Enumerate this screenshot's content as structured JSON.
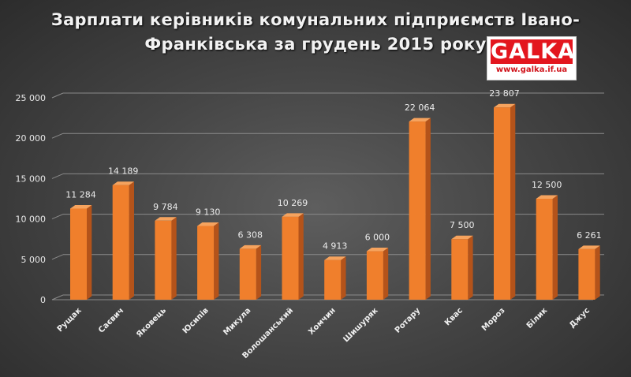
{
  "logo": {
    "brand": "GALKA",
    "url": "www.galka.if.ua"
  },
  "colors": {
    "bar_front": "#f07f2c",
    "bar_side": "#b4531a",
    "bar_top": "#f6a35e",
    "grid": "#8a8a8a"
  },
  "chart_data": {
    "type": "bar",
    "title_lines": [
      "Зарплати керівників комунальних підприємств Івано-",
      "Франківська за грудень 2015 року"
    ],
    "categories": [
      "Рущак",
      "Саєвич",
      "Яковець",
      "Юсипів",
      "Микула",
      "Волошанський",
      "Хомчин",
      "Шишуряк",
      "Ротару",
      "Квас",
      "Мороз",
      "Білик",
      "Джус"
    ],
    "values": [
      11284,
      14189,
      9784,
      9130,
      6308,
      10269,
      4913,
      6000,
      22064,
      7500,
      23807,
      12500,
      6261
    ],
    "value_labels": [
      "11 284",
      "14 189",
      "9 784",
      "9 130",
      "6 308",
      "10 269",
      "4 913",
      "6 000",
      "22 064",
      "7 500",
      "23 807",
      "12 500",
      "6 261"
    ],
    "y_ticks": [
      0,
      5000,
      10000,
      15000,
      20000,
      25000
    ],
    "y_tick_labels": [
      "0",
      "5 000",
      "10 000",
      "15 000",
      "20 000",
      "25 000"
    ],
    "ylim": [
      0,
      25000
    ],
    "grid": true,
    "legend": "none"
  }
}
